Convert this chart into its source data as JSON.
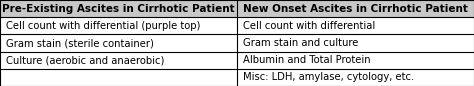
{
  "col1_header": "Pre-Existing Ascites in Cirrhotic Patient",
  "col2_header": "New Onset Ascites in Cirrhotic Patient",
  "col1_rows": [
    "Cell count with differential (purple top)",
    "Gram stain (sterile container)",
    "Culture (aerobic and anaerobic)",
    ""
  ],
  "col2_rows": [
    "Cell count with differential",
    "Gram stain and culture",
    "Albumin and Total Protein",
    "Misc: LDH, amylase, cytology, etc."
  ],
  "header_bg": "#c8c8c8",
  "row_bg": "#ffffff",
  "border_color": "#000000",
  "text_color": "#000000",
  "header_fontsize": 7.5,
  "row_fontsize": 7.2,
  "fig_width": 4.74,
  "fig_height": 0.86,
  "dpi": 100
}
